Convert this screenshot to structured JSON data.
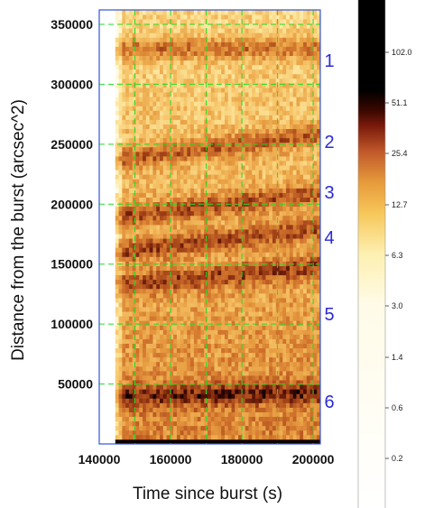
{
  "chart_data": {
    "type": "heatmap",
    "xlabel": "Time since burst (s)",
    "ylabel": "Distance from the burst (arcsec^2)",
    "xlim": [
      140000,
      202000
    ],
    "ylim": [
      0,
      362000
    ],
    "x_ticks": [
      "140000",
      "160000",
      "180000",
      "200000"
    ],
    "x_tick_values": [
      140000,
      160000,
      180000,
      200000
    ],
    "y_ticks": [
      "50000",
      "100000",
      "150000",
      "200000",
      "250000",
      "300000",
      "350000"
    ],
    "y_tick_values": [
      50000,
      100000,
      150000,
      200000,
      250000,
      300000,
      350000
    ],
    "grid": true,
    "grid_color": "#22dd22",
    "frame_color": "#3355dd",
    "data_start_x": 144500,
    "colorbar": {
      "ticks": [
        "102.0",
        "51.1",
        "25.4",
        "12.7",
        "6.3",
        "3.0",
        "1.4",
        "0.6",
        "0.2"
      ],
      "colormap": "heat (white → yellow → orange → dark red → black)"
    },
    "ring_labels": [
      "1",
      "2",
      "3",
      "4",
      "5",
      "6"
    ],
    "ring_label_color": "#2a2ad8",
    "dust_rings": [
      {
        "label": "1",
        "distance_at_start": 330000,
        "slope": 0
      },
      {
        "label": "2",
        "distance_at_start": 238000,
        "slope": 0.35
      },
      {
        "label": "3",
        "distance_at_start": 190000,
        "slope": 0.33
      },
      {
        "label": "4",
        "distance_at_start": 160000,
        "slope": 0.35
      },
      {
        "label": "5",
        "distance_at_start": 132000,
        "slope": 0.28
      },
      {
        "label": "6",
        "distance_at_start": 40000,
        "slope": 0.05
      }
    ]
  }
}
